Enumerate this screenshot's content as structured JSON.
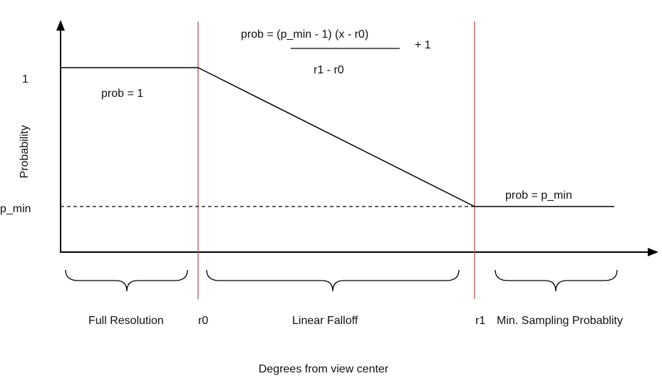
{
  "axes": {
    "y_title": "Probability",
    "x_title": "Degrees from view center"
  },
  "y_ticks": {
    "one": "1",
    "p_min": "p_min"
  },
  "formula": {
    "numerator": "prob = (p_min - 1) (x - r0)",
    "denominator": "r1 - r0",
    "suffix": "+ 1"
  },
  "curve_labels": {
    "full": "prob = 1",
    "min": "prob = p_min"
  },
  "markers": {
    "r0": "r0",
    "r1": "r1"
  },
  "regions": {
    "full": "Full Resolution",
    "linear": "Linear Falloff",
    "min": "Min. Sampling Probablity"
  },
  "colors": {
    "axis": "#000000",
    "marker_line": "#b85450",
    "text": "#111111"
  }
}
